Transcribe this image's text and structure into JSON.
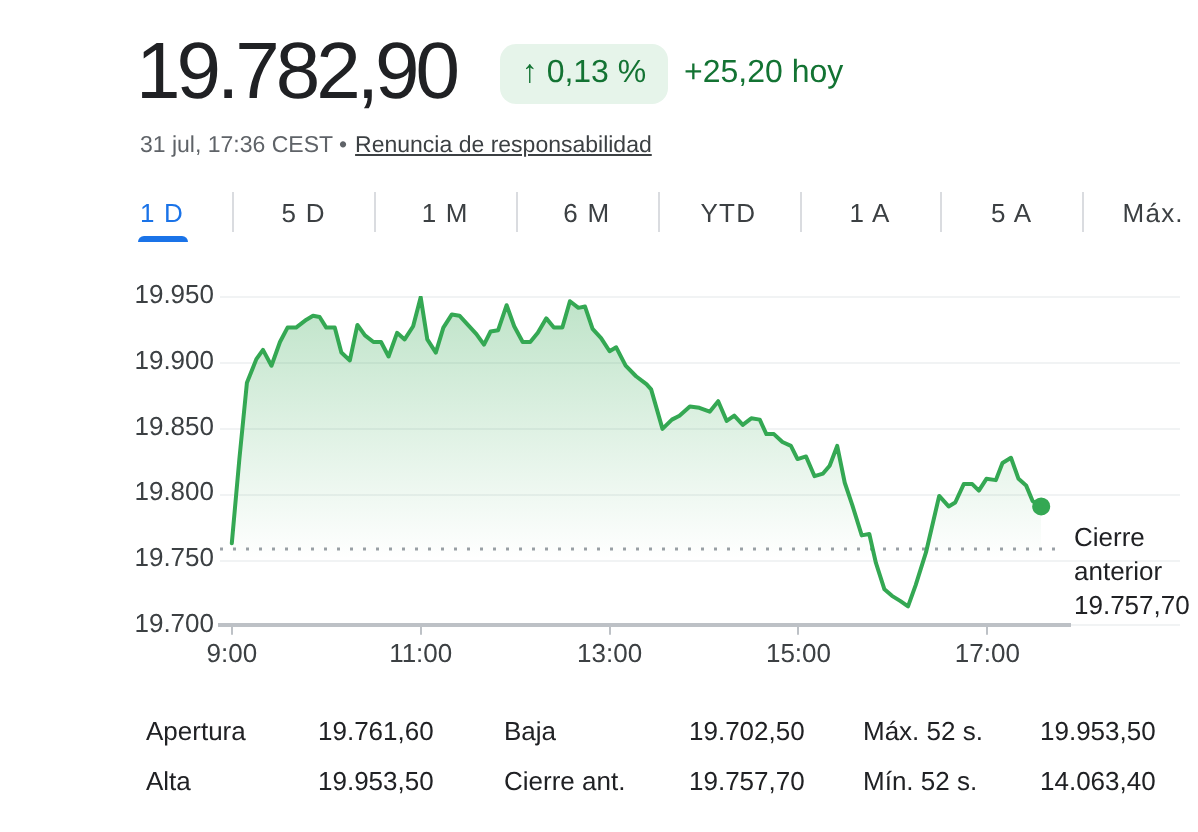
{
  "chart_data": {
    "type": "area",
    "title": "19.782,90",
    "subtitle": "31 jul, 17:36 CEST •",
    "annotations": [
      "↑ 0,13 %",
      "+25,20 hoy",
      "Renuncia de responsabilidad",
      "1 D",
      "5 D",
      "1 M",
      "6 M",
      "YTD",
      "1 A",
      "5 A",
      "Máx.",
      "Apertura",
      "19.761,60",
      "Baja",
      "19.702,50",
      "Máx. 52 s.",
      "19.953,50",
      "Alta",
      "19.953,50",
      "Cierre ant.",
      "19.757,70",
      "Mín. 52 s.",
      "14.063,40"
    ],
    "xlim": [
      8.875,
      17.875
    ],
    "xticks": [
      {
        "value": 9,
        "label": "9:00"
      },
      {
        "value": 11,
        "label": "11:00"
      },
      {
        "value": 13,
        "label": "13:00"
      },
      {
        "value": 15,
        "label": "15:00"
      },
      {
        "value": 17,
        "label": "17:00"
      }
    ],
    "ylim": [
      19700,
      19950
    ],
    "yticks": [
      {
        "value": 19700,
        "label": "19.700"
      },
      {
        "value": 19750,
        "label": "19.750"
      },
      {
        "value": 19800,
        "label": "19.800"
      },
      {
        "value": 19850,
        "label": "19.850"
      },
      {
        "value": 19900,
        "label": "19.900"
      },
      {
        "value": 19950,
        "label": "19.950"
      }
    ],
    "grid": "y",
    "marker": "none",
    "ref_lines": [
      {
        "axis": "y",
        "value": 19757.7,
        "label": "Cierre anterior 19.757,70",
        "color": "#9aa0a6",
        "line_style": "dotted"
      }
    ],
    "series": [
      {
        "color": "#34a853",
        "x": [
          9.0,
          9.08,
          9.16,
          9.26,
          9.33,
          9.42,
          9.51,
          9.59,
          9.68,
          9.79,
          9.86,
          9.93,
          10.0,
          10.09,
          10.16,
          10.25,
          10.33,
          10.41,
          10.5,
          10.58,
          10.66,
          10.75,
          10.83,
          10.92,
          11.0,
          11.07,
          11.16,
          11.24,
          11.33,
          11.41,
          11.5,
          11.59,
          11.67,
          11.74,
          11.82,
          11.91,
          11.99,
          12.08,
          12.16,
          12.24,
          12.33,
          12.41,
          12.5,
          12.58,
          12.67,
          12.74,
          12.82,
          12.91,
          13.0,
          13.07,
          13.17,
          13.28,
          13.39,
          13.44,
          13.56,
          13.66,
          13.74,
          13.85,
          13.95,
          14.06,
          14.15,
          14.24,
          14.32,
          14.41,
          14.5,
          14.59,
          14.66,
          14.74,
          14.83,
          14.92,
          14.99,
          15.08,
          15.17,
          15.26,
          15.33,
          15.41,
          15.49,
          15.57,
          15.67,
          15.75,
          15.82,
          15.91,
          15.99,
          16.08,
          16.16,
          16.24,
          16.35,
          16.49,
          16.59,
          16.66,
          16.75,
          16.84,
          16.91,
          16.99,
          17.09,
          17.16,
          17.25,
          17.33,
          17.41,
          17.48,
          17.57
        ],
        "values": [
          19762,
          19826,
          19884,
          19902,
          19909,
          19897,
          19915,
          19926,
          19926,
          19932,
          19935,
          19934,
          19926,
          19926,
          19907,
          19901,
          19928,
          19920,
          19915,
          19915,
          19904,
          19922,
          19917,
          19927,
          19949,
          19917,
          19907,
          19926,
          19936,
          19935,
          19928,
          19921,
          19913,
          19923,
          19924,
          19943,
          19927,
          19915,
          19915,
          19922,
          19933,
          19926,
          19926,
          19946,
          19941,
          19942,
          19925,
          19918,
          19908,
          19911,
          19897,
          19889,
          19883,
          19879,
          19849,
          19856,
          19859,
          19866,
          19865,
          19862,
          19870,
          19855,
          19859,
          19852,
          19857,
          19856,
          19845,
          19845,
          19839,
          19836,
          19826,
          19828,
          19813,
          19815,
          19821,
          19836,
          19808,
          19791,
          19768,
          19769,
          19747,
          19727,
          19722,
          19718,
          19714,
          19730,
          19755,
          19798,
          19790,
          19793,
          19807,
          19807,
          19802,
          19811,
          19810,
          19823,
          19827,
          19811,
          19806,
          19794,
          19790
        ]
      },
      {
        "type": "scatter",
        "color": "#34a853",
        "marker": "circle",
        "x": [
          17.57
        ],
        "values": [
          19790
        ]
      }
    ]
  }
}
